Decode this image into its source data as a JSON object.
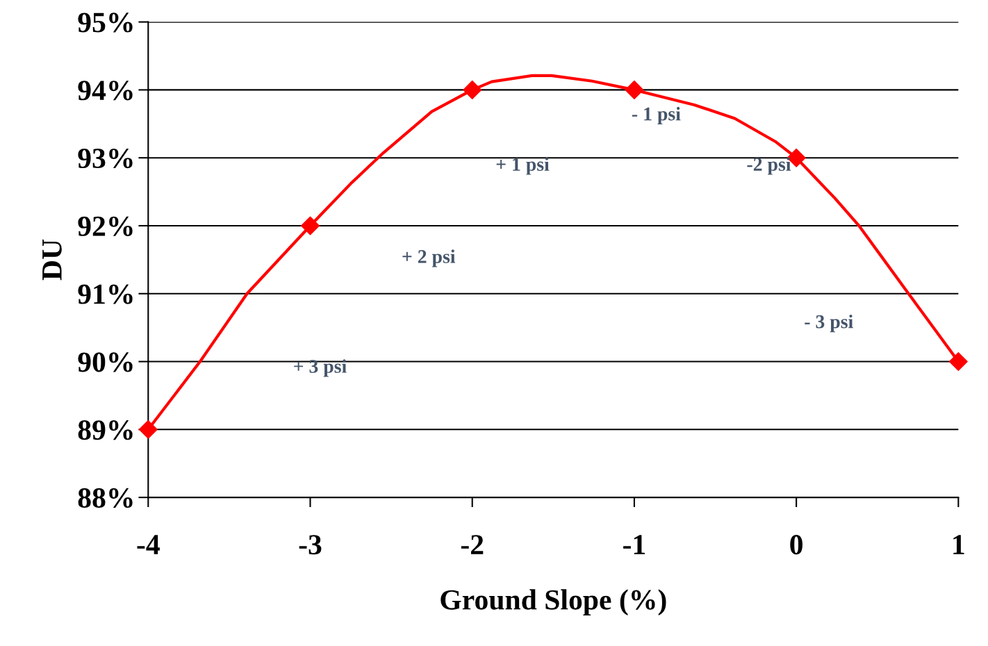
{
  "chart_data": {
    "type": "line",
    "xlabel": "Ground Slope (%)",
    "ylabel": "DU",
    "x": [
      -4,
      -3,
      -2,
      -1,
      0,
      1
    ],
    "series": [
      {
        "color": "#ff0000",
        "marker": "none",
        "x": [
          -4,
          -3.68,
          -3.39,
          -3,
          -2.75,
          -2.55,
          -2.25,
          -2,
          -1.88,
          -1.63,
          -1.51,
          -1.26,
          -1,
          -0.63,
          -0.38,
          -0.13,
          0,
          0.24,
          0.39,
          0.68,
          1
        ],
        "values": [
          89,
          90.0,
          91.0,
          92,
          92.62,
          93.07,
          93.68,
          94,
          94.12,
          94.21,
          94.21,
          94.13,
          94,
          93.78,
          93.58,
          93.24,
          93,
          92.4,
          91.99,
          91.04,
          90
        ]
      },
      {
        "type": "scatter",
        "color": "#ff0000",
        "values": [
          89,
          92,
          94,
          94,
          93,
          90
        ]
      }
    ],
    "marker": "diamond",
    "line_style": "solid",
    "grid": "y",
    "xlim": [
      -4,
      1
    ],
    "xticks": [
      -4,
      -3,
      -2,
      -1,
      0,
      1
    ],
    "ylim": [
      88,
      95
    ],
    "yticks": [
      {
        "value": 88,
        "label": "88%"
      },
      {
        "value": 89,
        "label": "89%"
      },
      {
        "value": 90,
        "label": "90%"
      },
      {
        "value": 91,
        "label": "91%"
      },
      {
        "value": 92,
        "label": "92%"
      },
      {
        "value": 93,
        "label": "93%"
      },
      {
        "value": 94,
        "label": "94%"
      },
      {
        "value": 95,
        "label": "95%"
      }
    ],
    "annotations": [
      "+ 3 psi",
      "+ 2 psi",
      "+ 1 psi",
      "- 1 psi",
      "-2 psi",
      "- 3 psi"
    ]
  }
}
